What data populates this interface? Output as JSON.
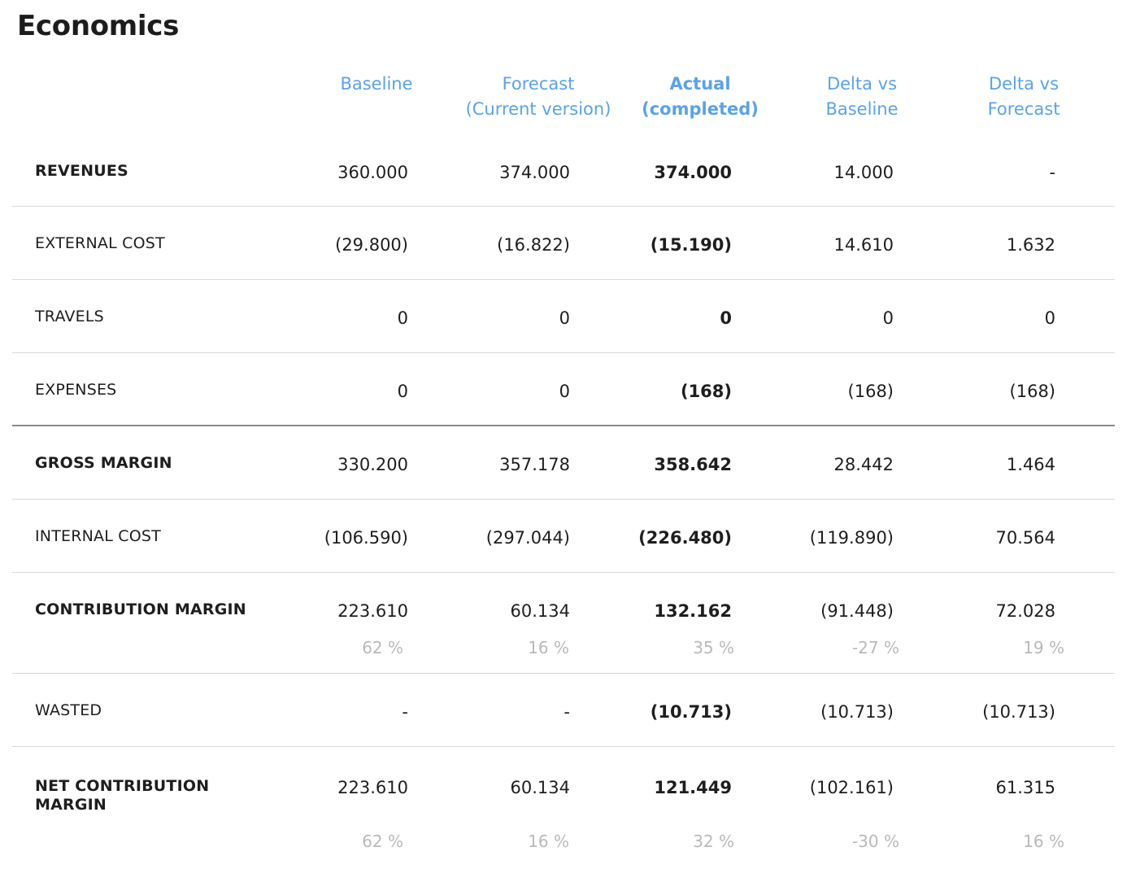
{
  "title": "Economics",
  "columns": [
    {
      "line1": "Baseline",
      "line2": ""
    },
    {
      "line1": "Forecast",
      "line2": "(Current version)"
    },
    {
      "line1": "Actual",
      "line2": "(completed)"
    },
    {
      "line1": "Delta vs",
      "line2": "Baseline"
    },
    {
      "line1": "Delta vs",
      "line2": "Forecast"
    }
  ],
  "rows": [
    {
      "label": "REVENUES",
      "values": [
        "360.000",
        "374.000",
        "374.000",
        "14.000",
        "-"
      ]
    },
    {
      "label": "EXTERNAL COST",
      "values": [
        "(29.800)",
        "(16.822)",
        "(15.190)",
        "14.610",
        "1.632"
      ]
    },
    {
      "label": "TRAVELS",
      "values": [
        "0",
        "0",
        "0",
        "0",
        "0"
      ]
    },
    {
      "label": "EXPENSES",
      "values": [
        "0",
        "0",
        "(168)",
        "(168)",
        "(168)"
      ]
    },
    {
      "label": "GROSS MARGIN",
      "values": [
        "330.200",
        "357.178",
        "358.642",
        "28.442",
        "1.464"
      ]
    },
    {
      "label": "INTERNAL COST",
      "values": [
        "(106.590)",
        "(297.044)",
        "(226.480)",
        "(119.890)",
        "70.564"
      ]
    },
    {
      "label": "CONTRIBUTION MARGIN",
      "values": [
        "223.610",
        "60.134",
        "132.162",
        "(91.448)",
        "72.028"
      ],
      "percents": [
        "62 %",
        "16 %",
        "35 %",
        "-27 %",
        "19 %"
      ]
    },
    {
      "label": "WASTED",
      "values": [
        "-",
        "-",
        "(10.713)",
        "(10.713)",
        "(10.713)"
      ]
    },
    {
      "label": "NET CONTRIBUTION MARGIN",
      "values": [
        "223.610",
        "60.134",
        "121.449",
        "(102.161)",
        "61.315"
      ],
      "percents": [
        "62 %",
        "16 %",
        "32 %",
        "-30 %",
        "16 %"
      ]
    }
  ]
}
